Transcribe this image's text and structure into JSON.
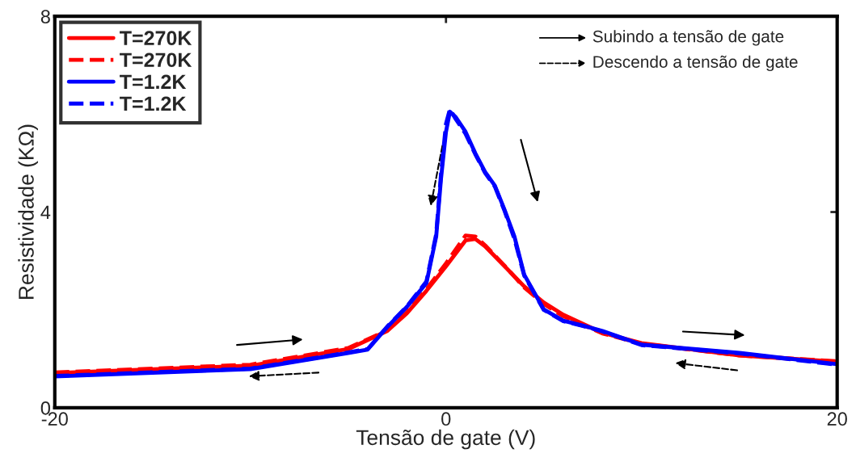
{
  "chart_data": {
    "type": "line",
    "xlabel": "Tensão de gate (V)",
    "ylabel": "Resistividade (KΩ)",
    "annotations": [
      "Subindo a tensão de gate",
      "Descendo a tensão de gate"
    ],
    "xlim": [
      -20,
      20
    ],
    "xticks": [
      -20,
      0,
      20
    ],
    "ylim": [
      0,
      8
    ],
    "yticks": [
      0,
      4,
      8
    ],
    "grid": false,
    "legend": "top left",
    "marker": "none",
    "series": [
      {
        "name": "T=270K",
        "color": "#ff0000",
        "line_style": "solid",
        "x": [
          -20,
          -10,
          -5,
          -3,
          -2,
          -1,
          0,
          1,
          1.5,
          2,
          3,
          4,
          5,
          6,
          8,
          10,
          15,
          20
        ],
        "values": [
          0.71,
          0.86,
          1.2,
          1.57,
          1.93,
          2.39,
          2.89,
          3.42,
          3.45,
          3.3,
          2.89,
          2.48,
          2.15,
          1.9,
          1.53,
          1.32,
          1.07,
          0.94
        ]
      },
      {
        "name": "T=270K",
        "color": "#ff0000",
        "line_style": "dashed",
        "x": [
          -20,
          -10,
          -5,
          -3,
          -2,
          -1,
          0,
          1,
          1.5,
          2,
          3,
          4,
          5,
          6,
          8,
          10,
          15,
          20
        ],
        "values": [
          0.72,
          0.88,
          1.22,
          1.58,
          1.95,
          2.42,
          2.95,
          3.52,
          3.5,
          3.32,
          2.9,
          2.46,
          2.12,
          1.87,
          1.52,
          1.31,
          1.07,
          0.95
        ]
      },
      {
        "name": "T=1.2K",
        "color": "#0000ff",
        "line_style": "solid",
        "x": [
          -20,
          -10,
          -5,
          -4,
          -3,
          -2,
          -1,
          -0.5,
          -0.25,
          0,
          0.2,
          0.5,
          1,
          1.5,
          2,
          2.5,
          3,
          3.5,
          4,
          5,
          6,
          7,
          8,
          10,
          15,
          20
        ],
        "values": [
          0.64,
          0.79,
          1.12,
          1.19,
          1.65,
          2.06,
          2.55,
          3.5,
          4.7,
          5.64,
          6.05,
          5.94,
          5.64,
          5.2,
          4.82,
          4.54,
          4.04,
          3.5,
          2.72,
          2.01,
          1.78,
          1.68,
          1.57,
          1.29,
          1.12,
          0.89
        ]
      },
      {
        "name": "T=1.2K",
        "color": "#0000ff",
        "line_style": "dashed",
        "x": [
          -20,
          -10,
          -5,
          -4,
          -3,
          -2,
          -1,
          -0.5,
          -0.25,
          0,
          0.2,
          0.5,
          1,
          1.5,
          2,
          2.5,
          3,
          3.5,
          4,
          5,
          6,
          7,
          8,
          10,
          15,
          20
        ],
        "values": [
          0.65,
          0.8,
          1.13,
          1.2,
          1.66,
          2.07,
          2.58,
          3.55,
          4.8,
          5.8,
          6.1,
          5.9,
          5.6,
          5.18,
          4.8,
          4.52,
          4.02,
          3.45,
          2.7,
          2.0,
          1.77,
          1.67,
          1.56,
          1.28,
          1.11,
          0.88
        ]
      }
    ]
  }
}
